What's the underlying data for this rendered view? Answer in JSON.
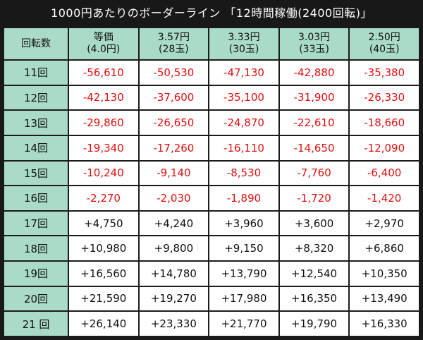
{
  "title": "1000円あたりのボーダーライン 「12時間稼働(2400回転)」",
  "header": {
    "corner": "回転数",
    "columns": [
      {
        "line1": "等価",
        "line2": "(4.0円)"
      },
      {
        "line1": "3.57円",
        "line2": "(28玉)"
      },
      {
        "line1": "3.33円",
        "line2": "(30玉)"
      },
      {
        "line1": "3.03円",
        "line2": "(33玉)"
      },
      {
        "line1": "2.50円",
        "line2": "(40玉)"
      }
    ]
  },
  "rows": [
    {
      "label": "11回",
      "values": [
        "-56,610",
        "-50,530",
        "-47,130",
        "-42,880",
        "-35,380"
      ]
    },
    {
      "label": "12回",
      "values": [
        "-42,130",
        "-37,600",
        "-35,100",
        "-31,900",
        "-26,330"
      ]
    },
    {
      "label": "13回",
      "values": [
        "-29,860",
        "-26,650",
        "-24,870",
        "-22,610",
        "-18,660"
      ]
    },
    {
      "label": "14回",
      "values": [
        "-19,340",
        "-17,260",
        "-16,110",
        "-14,650",
        "-12,090"
      ]
    },
    {
      "label": "15回",
      "values": [
        "-10,240",
        "-9,140",
        "-8,530",
        "-7,760",
        "-6,400"
      ]
    },
    {
      "label": "16回",
      "values": [
        "-2,270",
        "-2,030",
        "-1,890",
        "-1,720",
        "-1,420"
      ]
    },
    {
      "label": "17回",
      "values": [
        "+4,750",
        "+4,240",
        "+3,960",
        "+3,600",
        "+2,970"
      ]
    },
    {
      "label": "18回",
      "values": [
        "+10,980",
        "+9,800",
        "+9,150",
        "+8,320",
        "+6,860"
      ]
    },
    {
      "label": "19回",
      "values": [
        "+16,560",
        "+14,780",
        "+13,790",
        "+12,540",
        "+10,350"
      ]
    },
    {
      "label": "20回",
      "values": [
        "+21,590",
        "+19,270",
        "+17,980",
        "+16,350",
        "+13,490"
      ]
    },
    {
      "label": "21 回",
      "values": [
        "+26,140",
        "+23,330",
        "+21,770",
        "+19,790",
        "+16,330"
      ]
    }
  ],
  "colors": {
    "header_bg": "#a9dbc8",
    "negative": "#e01010",
    "positive": "#111111",
    "background": "#181818"
  }
}
